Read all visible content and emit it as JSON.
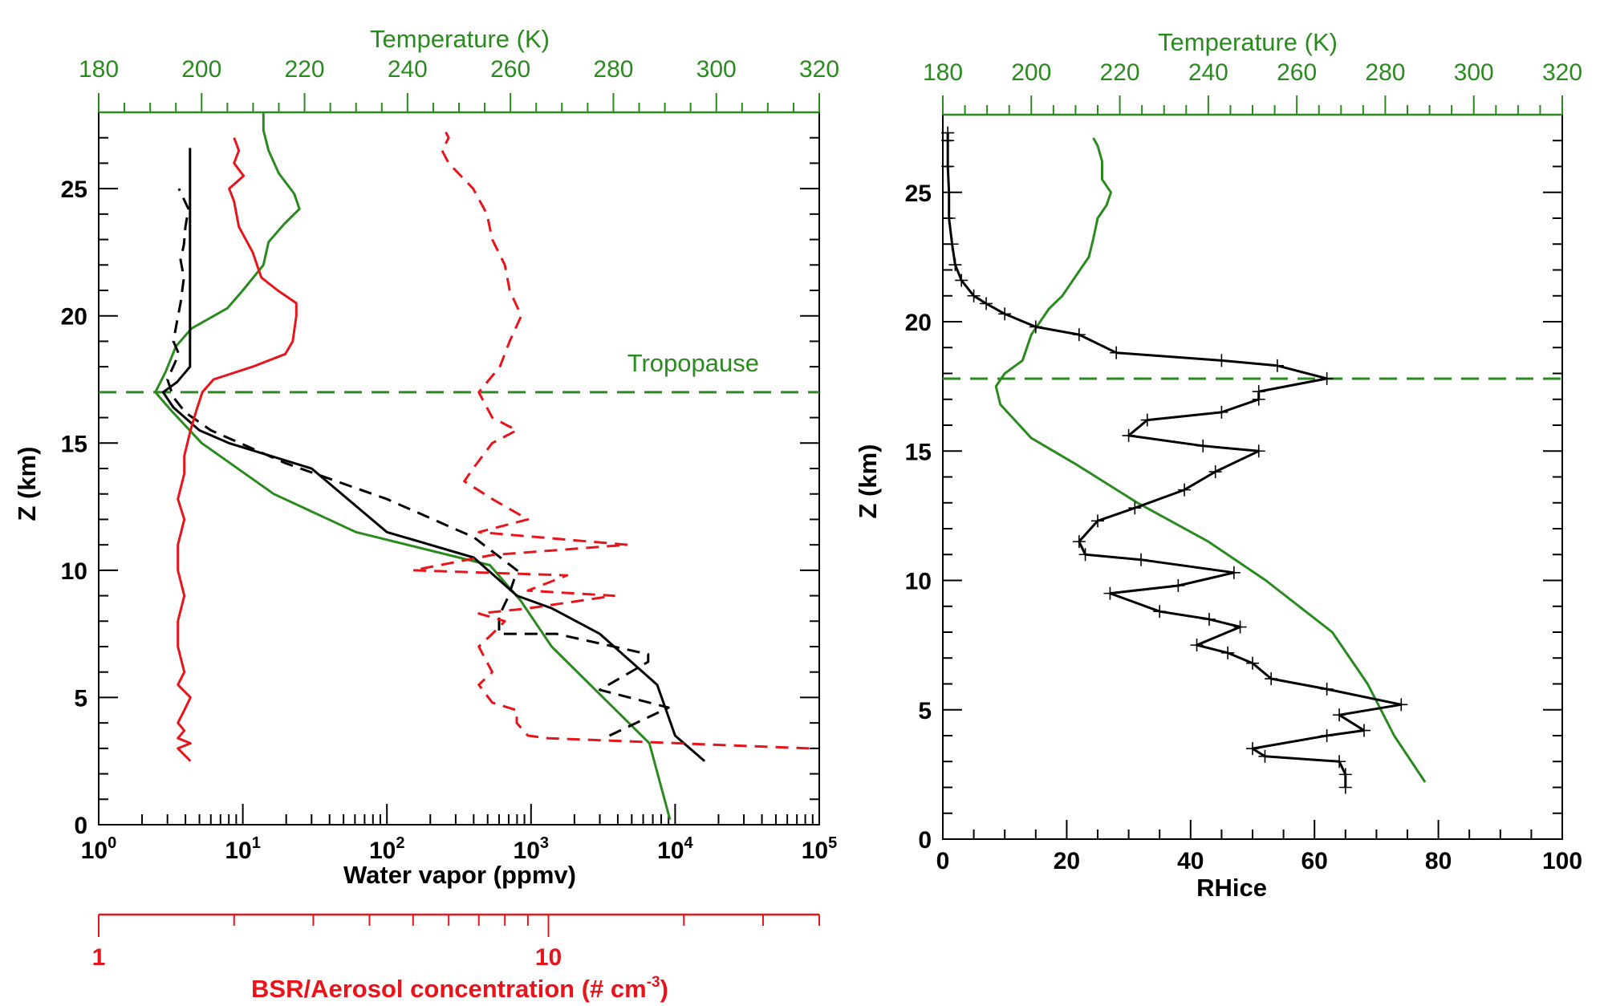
{
  "colors": {
    "temperature": "#2a8a1f",
    "water_vapor": "#000000",
    "aerosol": "#e8141b",
    "tropopause": "#2a8a1f"
  },
  "chart_data": [
    {
      "type": "line",
      "panel": "left",
      "ylabel": "Z (km)",
      "ylim": [
        0,
        28
      ],
      "y_ticks": [
        "0",
        "5",
        "10",
        "15",
        "20",
        "25"
      ],
      "x_bottom": {
        "label": "Water vapor (ppmv)",
        "scale": "log",
        "xlim": [
          1,
          100000
        ],
        "tick_labels": [
          {
            "base": "10",
            "exp": "0"
          },
          {
            "base": "10",
            "exp": "1"
          },
          {
            "base": "10",
            "exp": "2"
          },
          {
            "base": "10",
            "exp": "3"
          },
          {
            "base": "10",
            "exp": "4"
          },
          {
            "base": "10",
            "exp": "5"
          }
        ]
      },
      "x_top": {
        "label": "Temperature (K)",
        "scale": "linear",
        "xlim": [
          180,
          320
        ],
        "tick_labels": [
          "180",
          "200",
          "220",
          "240",
          "260",
          "280",
          "300",
          "320"
        ]
      },
      "x_extra": {
        "label": "BSR/Aerosol concentration (# cm",
        "label_sup": "-3",
        "label_end": ")",
        "scale": "log",
        "xlim": [
          1,
          40
        ],
        "tick_labels": [
          "1",
          "10"
        ]
      },
      "tropopause": {
        "z": 17.0,
        "label": "Tropopause"
      },
      "series": [
        {
          "id": "temperature",
          "axis": "top",
          "style": "solid",
          "points": [
            [
              291,
              0.2
            ],
            [
              287,
              3.2
            ],
            [
              278,
              5.0
            ],
            [
              268,
              7.0
            ],
            [
              262,
              8.8
            ],
            [
              256,
              10.2
            ],
            [
              230,
              11.5
            ],
            [
              214,
              13.0
            ],
            [
              200,
              15.0
            ],
            [
              194,
              16.3
            ],
            [
              191,
              17.0
            ],
            [
              193,
              17.8
            ],
            [
              195,
              18.8
            ],
            [
              198,
              19.5
            ],
            [
              205,
              20.3
            ],
            [
              208,
              21.0
            ],
            [
              212,
              22.0
            ],
            [
              213,
              22.9
            ],
            [
              216,
              23.6
            ],
            [
              219,
              24.2
            ],
            [
              218,
              24.8
            ],
            [
              215,
              25.6
            ],
            [
              213,
              26.5
            ],
            [
              212,
              27.3
            ],
            [
              212,
              28.0
            ]
          ]
        },
        {
          "id": "water-vapor-solid",
          "axis": "bottom",
          "style": "solid",
          "points": [
            [
              16000,
              2.5
            ],
            [
              10000,
              3.5
            ],
            [
              7500,
              5.5
            ],
            [
              3000,
              7.5
            ],
            [
              1400,
              8.5
            ],
            [
              800,
              9.0
            ],
            [
              400,
              10.5
            ],
            [
              100,
              11.5
            ],
            [
              30,
              14.0
            ],
            [
              8,
              15.0
            ],
            [
              5,
              15.5
            ],
            [
              3.3,
              16.4
            ],
            [
              2.8,
              17.0
            ],
            [
              3.5,
              17.4
            ],
            [
              4.3,
              18.0
            ],
            [
              4.3,
              20.0
            ],
            [
              4.3,
              22.5
            ],
            [
              4.3,
              24.0
            ],
            [
              4.3,
              25.0
            ],
            [
              4.3,
              26.6
            ]
          ]
        },
        {
          "id": "water-vapor-dashed",
          "axis": "bottom",
          "style": "dashed",
          "points": [
            [
              3500,
              3.5
            ],
            [
              9000,
              4.6
            ],
            [
              3000,
              5.3
            ],
            [
              6500,
              6.4
            ],
            [
              6500,
              6.7
            ],
            [
              1500,
              7.5
            ],
            [
              600,
              7.5
            ],
            [
              600,
              8.2
            ],
            [
              700,
              9.0
            ],
            [
              800,
              10.0
            ],
            [
              400,
              11.3
            ],
            [
              100,
              12.8
            ],
            [
              20,
              14.2
            ],
            [
              6,
              15.5
            ],
            [
              4,
              16.2
            ],
            [
              3.3,
              16.8
            ],
            [
              3.0,
              17.5
            ],
            [
              3.6,
              18.5
            ],
            [
              3.3,
              19.0
            ],
            [
              3.5,
              19.8
            ],
            [
              3.7,
              20.5
            ],
            [
              3.9,
              21.5
            ],
            [
              3.7,
              22.2
            ],
            [
              3.9,
              22.8
            ],
            [
              4.0,
              23.5
            ],
            [
              4.2,
              24.2
            ],
            [
              3.6,
              25.0
            ]
          ]
        },
        {
          "id": "aerosol-solid",
          "axis": "extra",
          "style": "solid",
          "points": [
            [
              1.6,
              2.5
            ],
            [
              1.5,
              3.0
            ],
            [
              1.6,
              3.2
            ],
            [
              1.5,
              3.4
            ],
            [
              1.55,
              3.7
            ],
            [
              1.5,
              4.0
            ],
            [
              1.55,
              4.5
            ],
            [
              1.6,
              5.0
            ],
            [
              1.5,
              5.5
            ],
            [
              1.55,
              6.0
            ],
            [
              1.5,
              7.0
            ],
            [
              1.5,
              8.0
            ],
            [
              1.55,
              9.0
            ],
            [
              1.5,
              10.0
            ],
            [
              1.5,
              11.0
            ],
            [
              1.55,
              12.0
            ],
            [
              1.5,
              12.8
            ],
            [
              1.55,
              13.8
            ],
            [
              1.55,
              14.5
            ],
            [
              1.6,
              15.5
            ],
            [
              1.65,
              16.3
            ],
            [
              1.7,
              17.0
            ],
            [
              1.8,
              17.5
            ],
            [
              2.2,
              18.0
            ],
            [
              2.6,
              18.5
            ],
            [
              2.7,
              19.0
            ],
            [
              2.75,
              20.0
            ],
            [
              2.75,
              20.5
            ],
            [
              2.5,
              21.0
            ],
            [
              2.3,
              21.5
            ],
            [
              2.2,
              22.5
            ],
            [
              2.05,
              23.5
            ],
            [
              2.0,
              24.5
            ],
            [
              1.95,
              25.0
            ],
            [
              2.1,
              25.5
            ],
            [
              2.0,
              26.0
            ],
            [
              2.05,
              26.5
            ],
            [
              2.0,
              27.0
            ]
          ]
        },
        {
          "id": "aerosol-dashed",
          "axis": "extra",
          "style": "dashed",
          "points": [
            [
              38,
              3.0
            ],
            [
              10,
              3.4
            ],
            [
              9,
              3.5
            ],
            [
              8.5,
              4.0
            ],
            [
              8.5,
              4.5
            ],
            [
              7.5,
              4.8
            ],
            [
              7.0,
              5.5
            ],
            [
              7.5,
              6.0
            ],
            [
              7.0,
              7.0
            ],
            [
              7.5,
              7.5
            ],
            [
              8.0,
              8.0
            ],
            [
              7.0,
              8.3
            ],
            [
              9.0,
              8.5
            ],
            [
              14.0,
              9.0
            ],
            [
              9.0,
              9.2
            ],
            [
              11.0,
              9.8
            ],
            [
              5.0,
              10.0
            ],
            [
              7.5,
              10.6
            ],
            [
              15.0,
              11.0
            ],
            [
              7.0,
              11.5
            ],
            [
              9.0,
              12.0
            ],
            [
              7.5,
              12.8
            ],
            [
              6.5,
              13.5
            ],
            [
              6.8,
              14.0
            ],
            [
              7.5,
              15.0
            ],
            [
              8.5,
              15.5
            ],
            [
              7.5,
              16.0
            ],
            [
              7.0,
              17.0
            ],
            [
              7.8,
              18.0
            ],
            [
              8.2,
              19.0
            ],
            [
              8.7,
              20.0
            ],
            [
              8.2,
              21.0
            ],
            [
              8.0,
              22.0
            ],
            [
              7.5,
              23.0
            ],
            [
              7.3,
              24.0
            ],
            [
              6.8,
              25.0
            ],
            [
              6.0,
              26.0
            ],
            [
              5.8,
              26.5
            ],
            [
              6.0,
              27.0
            ],
            [
              5.8,
              27.5
            ]
          ]
        }
      ]
    },
    {
      "type": "line",
      "panel": "right",
      "xlabel": "RHice",
      "ylabel": "Z (km)",
      "xlim": [
        0,
        100
      ],
      "ylim": [
        0,
        28
      ],
      "x_ticks": [
        "0",
        "20",
        "40",
        "60",
        "80",
        "100"
      ],
      "y_ticks": [
        "0",
        "5",
        "10",
        "15",
        "20",
        "25"
      ],
      "x_top": {
        "label": "Temperature (K)",
        "scale": "linear",
        "xlim": [
          180,
          320
        ],
        "tick_labels": [
          "180",
          "200",
          "220",
          "240",
          "260",
          "280",
          "300",
          "320"
        ]
      },
      "tropopause": {
        "z": 17.8
      },
      "series": [
        {
          "id": "temperature",
          "axis": "top",
          "style": "solid",
          "points": [
            [
              289,
              2.2
            ],
            [
              282,
              4.0
            ],
            [
              276,
              6.0
            ],
            [
              268,
              8.0
            ],
            [
              253,
              10.0
            ],
            [
              240,
              11.5
            ],
            [
              224,
              13.0
            ],
            [
              210,
              14.5
            ],
            [
              200,
              15.5
            ],
            [
              193,
              16.8
            ],
            [
              192,
              17.5
            ],
            [
              194,
              18.0
            ],
            [
              198,
              18.5
            ],
            [
              200,
              19.5
            ],
            [
              204,
              20.5
            ],
            [
              207,
              21.0
            ],
            [
              211,
              22.0
            ],
            [
              213,
              22.5
            ],
            [
              214,
              23.2
            ],
            [
              215,
              24.0
            ],
            [
              217,
              24.5
            ],
            [
              218,
              25.0
            ],
            [
              216,
              25.5
            ],
            [
              216,
              26.2
            ],
            [
              215,
              26.8
            ],
            [
              214,
              27.1
            ]
          ]
        },
        {
          "id": "rhice",
          "axis": "bottom",
          "style": "solid-crosses",
          "points": [
            [
              65,
              2.0
            ],
            [
              65,
              2.5
            ],
            [
              64,
              3.0
            ],
            [
              52,
              3.2
            ],
            [
              50,
              3.5
            ],
            [
              62,
              4.0
            ],
            [
              68,
              4.2
            ],
            [
              64,
              4.8
            ],
            [
              74,
              5.2
            ],
            [
              62,
              5.8
            ],
            [
              53,
              6.2
            ],
            [
              50,
              6.8
            ],
            [
              46,
              7.2
            ],
            [
              41,
              7.5
            ],
            [
              48,
              8.2
            ],
            [
              43,
              8.5
            ],
            [
              35,
              8.8
            ],
            [
              27,
              9.5
            ],
            [
              38,
              9.8
            ],
            [
              47,
              10.3
            ],
            [
              32,
              10.8
            ],
            [
              23,
              11.0
            ],
            [
              22,
              11.5
            ],
            [
              25,
              12.3
            ],
            [
              31,
              12.8
            ],
            [
              39,
              13.5
            ],
            [
              44,
              14.2
            ],
            [
              51,
              15.0
            ],
            [
              42,
              15.2
            ],
            [
              30,
              15.6
            ],
            [
              33,
              16.2
            ],
            [
              45,
              16.5
            ],
            [
              51,
              17.0
            ],
            [
              51,
              17.3
            ],
            [
              62,
              17.8
            ],
            [
              54,
              18.3
            ],
            [
              45,
              18.5
            ],
            [
              28,
              18.8
            ],
            [
              22,
              19.5
            ],
            [
              15,
              19.8
            ],
            [
              10,
              20.3
            ],
            [
              7,
              20.7
            ],
            [
              5,
              21.0
            ],
            [
              3,
              21.6
            ],
            [
              2,
              22.2
            ],
            [
              1.5,
              23.0
            ],
            [
              1.0,
              24.0
            ],
            [
              1.0,
              25.0
            ],
            [
              0.8,
              26.0
            ],
            [
              0.8,
              27.0
            ],
            [
              0.8,
              27.3
            ]
          ]
        }
      ]
    }
  ]
}
